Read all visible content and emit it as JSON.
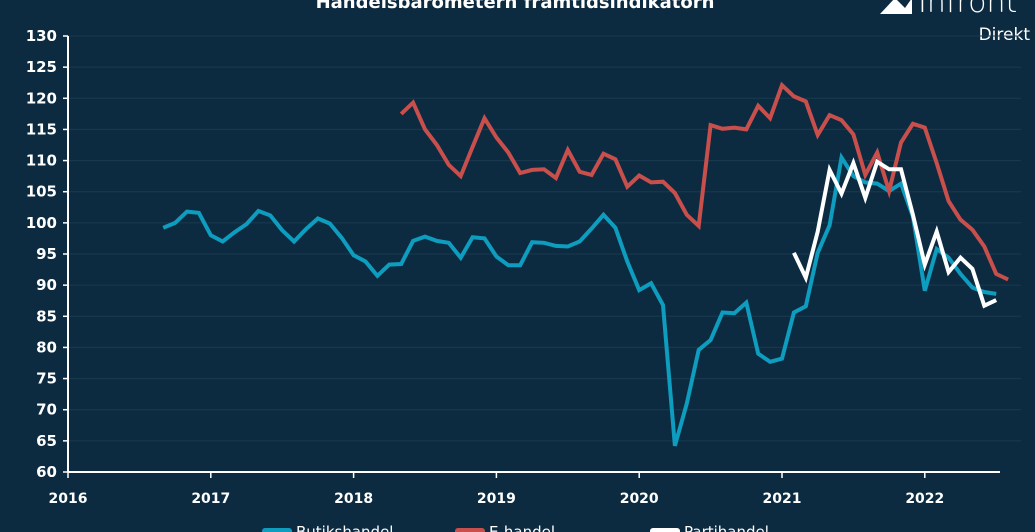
{
  "brand": {
    "name": "Infront",
    "sub": "Direkt"
  },
  "colors": {
    "background": "#0c2b40",
    "grid": "#1a3a50",
    "axis": "#ffffff",
    "butikshandel": "#0e9cbf",
    "ehandel": "#c84f4c",
    "partihandel": "#ffffff"
  },
  "chart_data": {
    "type": "line",
    "title": "Handelsbarometern framtidsindikatorn",
    "xlabel": "",
    "ylabel": "",
    "ylim": [
      60,
      130
    ],
    "yticks": [
      "130",
      "125",
      "120",
      "115",
      "110",
      "105",
      "100",
      "95",
      "90",
      "85",
      "80",
      "75",
      "70",
      "65",
      "60"
    ],
    "xlim": [
      2016,
      2022.667
    ],
    "xticks": [
      "2016",
      "2017",
      "2018",
      "2019",
      "2020",
      "2021",
      "2022"
    ],
    "grid": true,
    "legend_position": "bottom",
    "series": [
      {
        "name": "Butikshandel",
        "color": "#0e9cbf",
        "start": "2016-09",
        "values": [
          99.2,
          100.0,
          101.8,
          101.6,
          98.0,
          97.0,
          98.5,
          99.8,
          101.9,
          101.2,
          98.8,
          97.0,
          99.0,
          100.7,
          99.9,
          97.6,
          94.8,
          93.8,
          91.5,
          93.3,
          93.4,
          97.1,
          97.8,
          97.1,
          96.8,
          94.4,
          97.7,
          97.5,
          94.6,
          93.2,
          93.2,
          96.9,
          96.8,
          96.3,
          96.2,
          97.0,
          99.1,
          101.3,
          99.2,
          93.8,
          89.2,
          90.3,
          86.8,
          64.2,
          71.0,
          79.6,
          81.2,
          85.6,
          85.5,
          87.2,
          79.0,
          77.7,
          78.2,
          85.6,
          86.6,
          95.2,
          99.6,
          110.5,
          107.5,
          106.5,
          106.3,
          105.1,
          106.3,
          101.0,
          89.1,
          95.8,
          94.4,
          91.8,
          89.6,
          88.9,
          88.6
        ]
      },
      {
        "name": "E-handel",
        "color": "#c84f4c",
        "start": "2018-05",
        "values": [
          117.5,
          119.3,
          115.0,
          112.5,
          109.3,
          107.5,
          112.2,
          116.8,
          113.7,
          111.3,
          108.0,
          108.5,
          108.6,
          107.2,
          111.7,
          108.2,
          107.7,
          111.1,
          110.2,
          105.8,
          107.6,
          106.5,
          106.6,
          104.8,
          101.3,
          99.5,
          115.7,
          115.1,
          115.3,
          115.0,
          118.8,
          116.8,
          122.1,
          120.3,
          119.5,
          114.1,
          117.3,
          116.5,
          114.2,
          107.7,
          111.3,
          105.1,
          112.9,
          115.9,
          115.3,
          109.6,
          103.5,
          100.5,
          98.9,
          96.2,
          91.8,
          90.9
        ]
      },
      {
        "name": "Partihandel",
        "color": "#ffffff",
        "start": "2021-02",
        "values": [
          95.2,
          91.2,
          98.6,
          108.5,
          104.7,
          109.6,
          104.0,
          109.8,
          108.6,
          108.6,
          101.3,
          93.3,
          98.6,
          92.1,
          94.4,
          92.6,
          86.7,
          87.6
        ]
      }
    ]
  }
}
